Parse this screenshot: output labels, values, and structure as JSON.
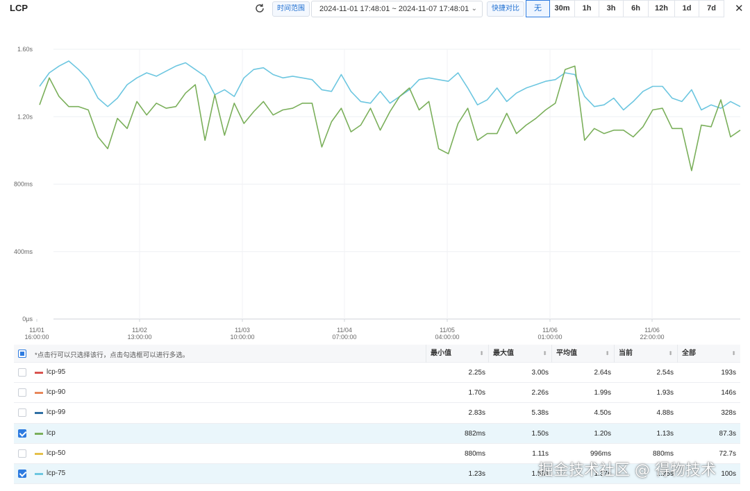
{
  "header": {
    "title": "LCP",
    "time_range_label": "时间范围",
    "time_range_value": "2024-11-01 17:48:01 ~ 2024-11-07 17:48:01",
    "compare_label": "快捷对比",
    "compare_options": [
      "无",
      "30m",
      "1h",
      "3h",
      "6h",
      "12h",
      "1d",
      "7d"
    ],
    "compare_selected": "无"
  },
  "chart_data": {
    "type": "line",
    "y_ticks": [
      "0μs",
      "400ms",
      "800ms",
      "1.20s",
      "1.60s"
    ],
    "ylim": [
      0,
      1.6
    ],
    "grid": true,
    "x_ticks": [
      {
        "date": "11/01",
        "time": "16:00:00"
      },
      {
        "date": "11/02",
        "time": "13:00:00"
      },
      {
        "date": "11/03",
        "time": "10:00:00"
      },
      {
        "date": "11/04",
        "time": "07:00:00"
      },
      {
        "date": "11/05",
        "time": "04:00:00"
      },
      {
        "date": "11/06",
        "time": "01:00:00"
      },
      {
        "date": "11/06",
        "time": "22:00:00"
      }
    ],
    "series": [
      {
        "name": "lcp-75",
        "color": "#6cc6e0",
        "values": [
          1.38,
          1.46,
          1.5,
          1.53,
          1.48,
          1.42,
          1.31,
          1.26,
          1.31,
          1.39,
          1.43,
          1.46,
          1.44,
          1.47,
          1.5,
          1.52,
          1.48,
          1.44,
          1.33,
          1.36,
          1.32,
          1.43,
          1.48,
          1.49,
          1.45,
          1.43,
          1.44,
          1.43,
          1.42,
          1.36,
          1.35,
          1.45,
          1.35,
          1.29,
          1.28,
          1.35,
          1.28,
          1.32,
          1.36,
          1.42,
          1.43,
          1.42,
          1.41,
          1.46,
          1.37,
          1.27,
          1.3,
          1.37,
          1.29,
          1.34,
          1.37,
          1.39,
          1.41,
          1.42,
          1.46,
          1.45,
          1.32,
          1.26,
          1.27,
          1.31,
          1.24,
          1.29,
          1.35,
          1.38,
          1.38,
          1.31,
          1.29,
          1.36,
          1.24,
          1.27,
          1.25,
          1.29,
          1.26
        ]
      },
      {
        "name": "lcp",
        "color": "#7aaf5a",
        "values": [
          1.27,
          1.43,
          1.32,
          1.26,
          1.26,
          1.24,
          1.08,
          1.01,
          1.19,
          1.13,
          1.29,
          1.21,
          1.28,
          1.25,
          1.26,
          1.34,
          1.39,
          1.06,
          1.33,
          1.09,
          1.28,
          1.16,
          1.23,
          1.29,
          1.21,
          1.24,
          1.25,
          1.28,
          1.28,
          1.02,
          1.17,
          1.25,
          1.11,
          1.15,
          1.25,
          1.12,
          1.23,
          1.32,
          1.37,
          1.24,
          1.29,
          1.01,
          0.98,
          1.16,
          1.25,
          1.06,
          1.1,
          1.1,
          1.22,
          1.1,
          1.15,
          1.19,
          1.24,
          1.28,
          1.48,
          1.5,
          1.06,
          1.13,
          1.1,
          1.12,
          1.12,
          1.08,
          1.14,
          1.24,
          1.25,
          1.13,
          1.13,
          0.88,
          1.15,
          1.14,
          1.3,
          1.08,
          1.12
        ]
      }
    ]
  },
  "table": {
    "hint": "*点击行可以只选择该行，点击勾选框可以进行多选。",
    "columns": [
      "最小值",
      "最大值",
      "平均值",
      "当前",
      "全部"
    ],
    "rows": [
      {
        "name": "lcp-95",
        "color": "#d9534f",
        "selected": false,
        "values": [
          "2.25s",
          "3.00s",
          "2.64s",
          "2.54s",
          "193s"
        ]
      },
      {
        "name": "lcp-90",
        "color": "#e8875a",
        "selected": false,
        "values": [
          "1.70s",
          "2.26s",
          "1.99s",
          "1.93s",
          "146s"
        ]
      },
      {
        "name": "lcp-99",
        "color": "#2f6fa3",
        "selected": false,
        "values": [
          "2.83s",
          "5.38s",
          "4.50s",
          "4.88s",
          "328s"
        ]
      },
      {
        "name": "lcp",
        "color": "#7aaf5a",
        "selected": true,
        "values": [
          "882ms",
          "1.50s",
          "1.20s",
          "1.13s",
          "87.3s"
        ]
      },
      {
        "name": "lcp-50",
        "color": "#e5c04a",
        "selected": false,
        "values": [
          "880ms",
          "1.11s",
          "996ms",
          "880ms",
          "72.7s"
        ]
      },
      {
        "name": "lcp-75",
        "color": "#6cc6e0",
        "selected": true,
        "values": [
          "1.23s",
          "1.53s",
          "1.37s",
          "1.25s",
          "100s"
        ]
      }
    ]
  },
  "watermark": "掘金技术社区 @ 得物技术"
}
